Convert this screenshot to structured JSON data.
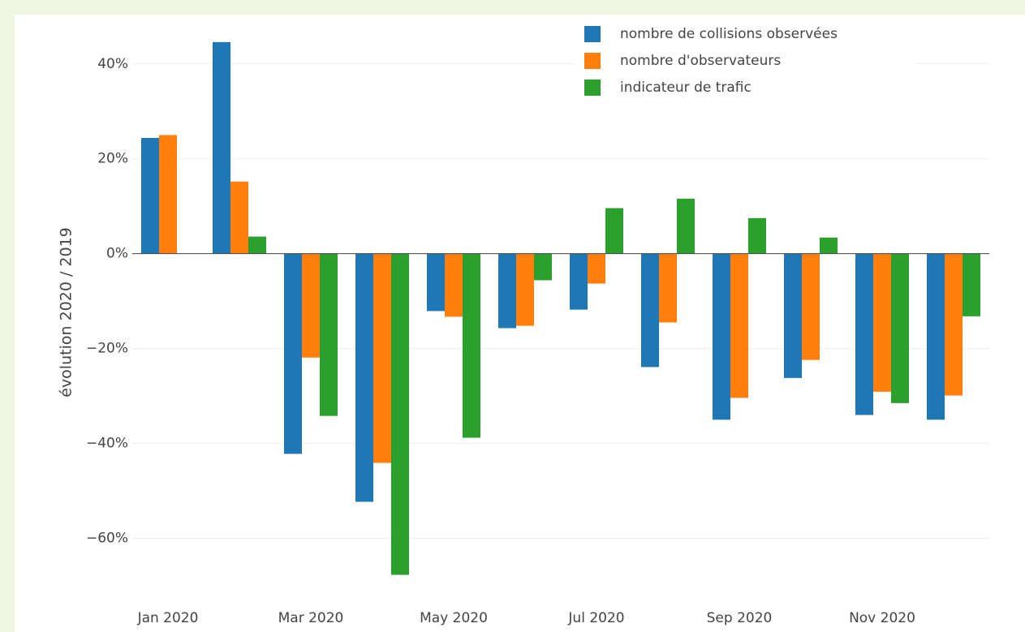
{
  "chart_data": {
    "type": "bar",
    "y_label": "évolution 2020 / 2019",
    "categories": [
      "Jan 2020",
      null,
      "Mar 2020",
      null,
      "May 2020",
      null,
      "Jul 2020",
      null,
      "Sep 2020",
      null,
      "Nov 2020",
      null
    ],
    "series": [
      {
        "name": "nombre de collisions observées",
        "color": "#1f77b4",
        "values": [
          24.4,
          44.6,
          -42.2,
          -52.3,
          -12.1,
          -15.7,
          -11.8,
          -23.9,
          -35.0,
          -26.2,
          -34.0,
          -35.0
        ]
      },
      {
        "name": "nombre d'observateurs",
        "color": "#ff7f0e",
        "values": [
          25.0,
          15.2,
          -21.9,
          -44.1,
          -13.3,
          -15.2,
          -6.3,
          -14.5,
          -30.4,
          -22.4,
          -29.1,
          -29.9
        ]
      },
      {
        "name": "indicateur de trafic",
        "color": "#2ca02c",
        "values": [
          null,
          3.6,
          -34.2,
          -67.7,
          -38.8,
          -5.6,
          9.6,
          11.6,
          7.5,
          3.4,
          -31.5,
          -13.2
        ]
      }
    ],
    "ylim": [
      -70,
      48
    ],
    "yticks": [
      {
        "value": -60,
        "label": "−60%"
      },
      {
        "value": -40,
        "label": "−40%"
      },
      {
        "value": -20,
        "label": "−20%"
      },
      {
        "value": 0,
        "label": "0%"
      },
      {
        "value": 20,
        "label": "20%"
      },
      {
        "value": 40,
        "label": "40%"
      }
    ],
    "grid": true,
    "legend": "top-right"
  }
}
